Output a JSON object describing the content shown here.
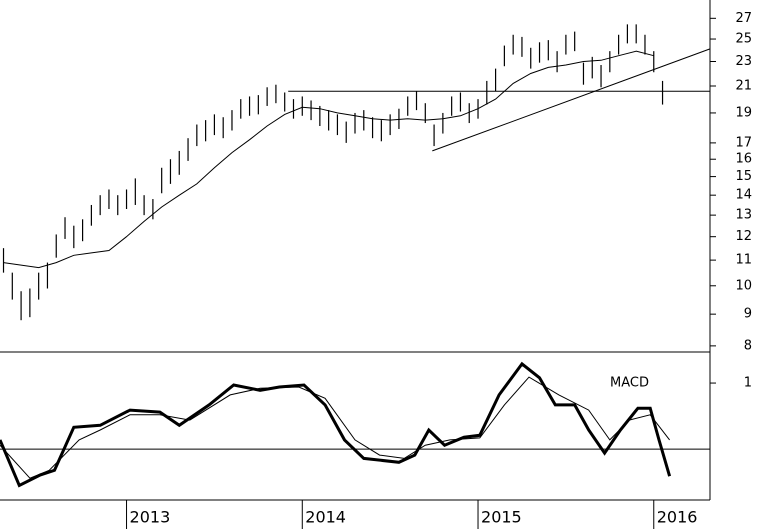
{
  "chart_data": [
    {
      "type": "hilo",
      "log": true,
      "color": "#000000",
      "xlim": [
        2012.28,
        2016.32
      ],
      "ylim": [
        7.82,
        28.9
      ],
      "yticks": [
        27,
        25,
        23,
        21,
        19,
        17,
        16,
        15,
        14,
        13,
        12,
        11,
        10,
        9,
        8
      ],
      "x": [
        2012.3,
        2012.35,
        2012.4,
        2012.45,
        2012.5,
        2012.55,
        2012.6,
        2012.65,
        2012.7,
        2012.75,
        2012.8,
        2012.85,
        2012.9,
        2012.95,
        2013.0,
        2013.05,
        2013.1,
        2013.15,
        2013.2,
        2013.25,
        2013.3,
        2013.35,
        2013.4,
        2013.45,
        2013.5,
        2013.55,
        2013.6,
        2013.65,
        2013.7,
        2013.75,
        2013.8,
        2013.85,
        2013.9,
        2013.95,
        2014.0,
        2014.05,
        2014.1,
        2014.15,
        2014.2,
        2014.25,
        2014.3,
        2014.35,
        2014.4,
        2014.45,
        2014.5,
        2014.55,
        2014.6,
        2014.65,
        2014.7,
        2014.75,
        2014.8,
        2014.85,
        2014.9,
        2014.95,
        2015.0,
        2015.05,
        2015.1,
        2015.15,
        2015.2,
        2015.25,
        2015.3,
        2015.35,
        2015.4,
        2015.45,
        2015.5,
        2015.55,
        2015.6,
        2015.65,
        2015.7,
        2015.75,
        2015.8,
        2015.85,
        2015.9,
        2015.95,
        2016.0,
        2016.05
      ],
      "high": [
        11.5,
        10.5,
        9.8,
        9.9,
        10.5,
        10.9,
        12.1,
        12.9,
        12.5,
        12.8,
        13.5,
        14.0,
        14.3,
        14.0,
        14.3,
        14.9,
        14.0,
        13.8,
        15.5,
        16.0,
        16.5,
        17.3,
        18.2,
        18.5,
        18.9,
        18.7,
        19.2,
        20.0,
        20.2,
        20.3,
        20.9,
        21.1,
        20.5,
        20.0,
        20.2,
        19.9,
        19.5,
        19.2,
        18.9,
        18.4,
        19.0,
        19.2,
        18.7,
        18.5,
        18.9,
        19.3,
        20.2,
        20.6,
        19.7,
        18.2,
        19.0,
        20.2,
        20.5,
        19.7,
        20.0,
        21.4,
        22.4,
        24.4,
        25.4,
        25.2,
        24.2,
        24.7,
        24.9,
        23.9,
        25.4,
        25.7,
        22.9,
        23.4,
        22.7,
        23.9,
        25.4,
        26.4,
        26.4,
        25.4,
        23.9,
        21.4
      ],
      "low": [
        10.5,
        9.5,
        8.8,
        8.9,
        9.5,
        9.9,
        11.1,
        11.9,
        11.5,
        11.8,
        12.5,
        13.0,
        13.3,
        13.0,
        13.3,
        13.5,
        13.0,
        12.8,
        14.1,
        14.6,
        15.1,
        15.9,
        16.8,
        17.1,
        17.5,
        17.3,
        17.8,
        18.6,
        18.8,
        18.9,
        19.5,
        19.7,
        19.1,
        18.6,
        18.8,
        18.5,
        18.1,
        17.8,
        17.5,
        17.0,
        17.6,
        17.8,
        17.3,
        17.1,
        17.5,
        17.9,
        18.8,
        19.2,
        18.3,
        16.8,
        17.6,
        18.8,
        19.1,
        18.3,
        18.6,
        19.6,
        20.6,
        22.6,
        23.6,
        23.4,
        22.4,
        22.9,
        23.1,
        22.1,
        23.6,
        23.9,
        21.1,
        21.6,
        20.9,
        22.1,
        23.6,
        24.6,
        24.6,
        23.6,
        22.1,
        19.6
      ],
      "overlays": [
        {
          "width": 1,
          "x": [
            2012.3,
            2012.4,
            2012.5,
            2012.6,
            2012.7,
            2012.8,
            2012.9,
            2013.0,
            2013.1,
            2013.2,
            2013.3,
            2013.4,
            2013.5,
            2013.6,
            2013.7,
            2013.8,
            2013.9,
            2014.0,
            2014.1,
            2014.2,
            2014.3,
            2014.4,
            2014.5,
            2014.6,
            2014.7,
            2014.8,
            2014.9,
            2015.0,
            2015.1,
            2015.2,
            2015.3,
            2015.4,
            2015.5,
            2015.6,
            2015.7,
            2015.8,
            2015.9,
            2016.0
          ],
          "values": [
            10.9,
            10.8,
            10.7,
            10.9,
            11.2,
            11.3,
            11.4,
            12.0,
            12.7,
            13.4,
            14.0,
            14.6,
            15.5,
            16.4,
            17.2,
            18.1,
            18.9,
            19.4,
            19.3,
            19.0,
            18.8,
            18.6,
            18.5,
            18.6,
            18.5,
            18.6,
            18.8,
            19.3,
            20.0,
            21.2,
            22.0,
            22.5,
            22.7,
            23.0,
            23.1,
            23.5,
            23.9,
            23.5
          ]
        },
        {
          "width": 1,
          "x": [
            2013.92,
            2016.32
          ],
          "values": [
            20.6,
            20.6
          ]
        },
        {
          "width": 1,
          "x": [
            2014.74,
            2016.32
          ],
          "values": [
            16.5,
            24.1
          ]
        }
      ]
    },
    {
      "type": "line",
      "label": "MACD",
      "hline": 0,
      "xlim": [
        2012.28,
        2016.32
      ],
      "ylim": [
        -0.77,
        1.47
      ],
      "yticks": [
        1
      ],
      "xticks": [
        2013,
        2014,
        2015,
        2016
      ],
      "series": [
        {
          "color": "#000000",
          "width": 3,
          "x": [
            2012.28,
            2012.39,
            2012.51,
            2012.59,
            2012.7,
            2012.85,
            2013.02,
            2013.19,
            2013.3,
            2013.47,
            2013.61,
            2013.76,
            2013.87,
            2014.01,
            2014.13,
            2014.24,
            2014.35,
            2014.55,
            2014.64,
            2014.72,
            2014.81,
            2014.92,
            2015.01,
            2015.12,
            2015.25,
            2015.35,
            2015.44,
            2015.55,
            2015.63,
            2015.72,
            2015.81,
            2015.91,
            2015.98,
            2016.03,
            2016.09
          ],
          "values": [
            0.14,
            -0.55,
            -0.39,
            -0.32,
            0.33,
            0.36,
            0.59,
            0.56,
            0.36,
            0.67,
            0.97,
            0.89,
            0.94,
            0.97,
            0.67,
            0.14,
            -0.14,
            -0.2,
            -0.09,
            0.29,
            0.06,
            0.18,
            0.21,
            0.82,
            1.29,
            1.08,
            0.67,
            0.67,
            0.29,
            -0.06,
            0.29,
            0.62,
            0.62,
            0.14,
            -0.41
          ]
        },
        {
          "color": "#000000",
          "width": 1,
          "x": [
            2012.28,
            2012.45,
            2012.56,
            2012.73,
            2012.85,
            2013.02,
            2013.19,
            2013.36,
            2013.59,
            2013.76,
            2013.98,
            2014.13,
            2014.3,
            2014.44,
            2014.58,
            2014.7,
            2014.84,
            2015.01,
            2015.15,
            2015.29,
            2015.46,
            2015.63,
            2015.75,
            2015.86,
            2015.98,
            2016.09
          ],
          "values": [
            0.06,
            -0.44,
            -0.32,
            0.14,
            0.29,
            0.52,
            0.52,
            0.44,
            0.82,
            0.92,
            0.94,
            0.77,
            0.14,
            -0.09,
            -0.14,
            0.06,
            0.14,
            0.17,
            0.67,
            1.09,
            0.82,
            0.59,
            0.14,
            0.44,
            0.52,
            0.14
          ]
        }
      ]
    }
  ]
}
